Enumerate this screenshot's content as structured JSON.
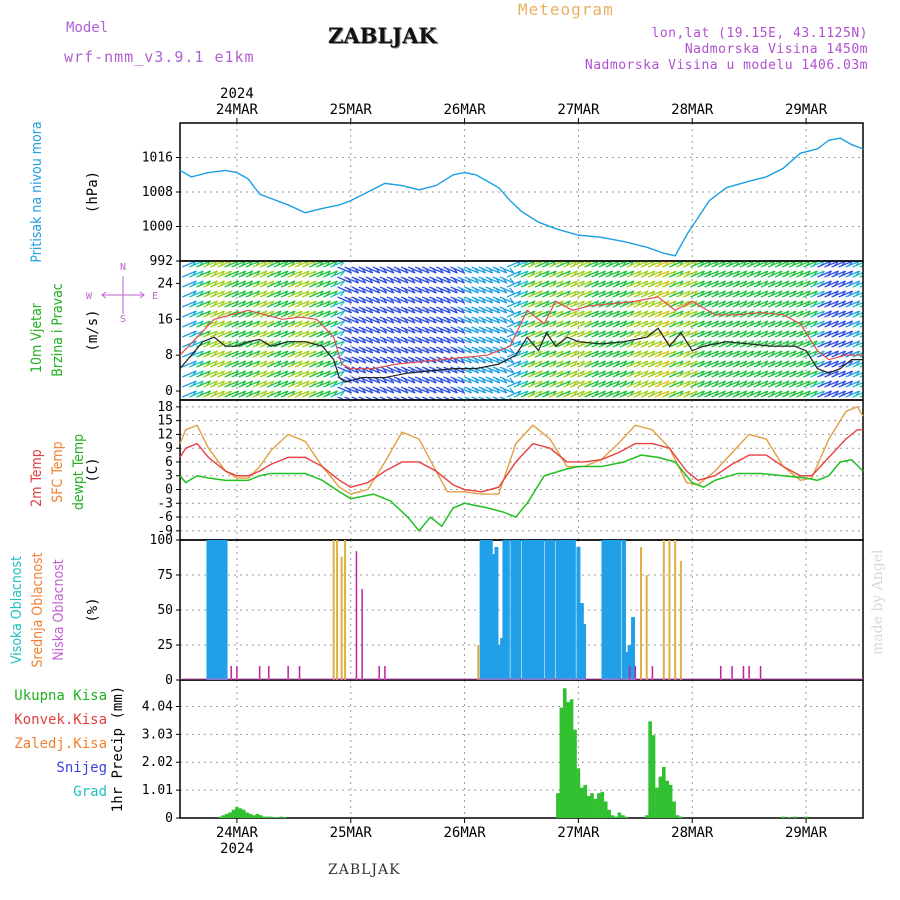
{
  "header": {
    "model_label": "Model",
    "model_name": "wrf-nmm_v3.9.1 e1km",
    "title": "ZABLJAK",
    "meteogram_label": "Meteogram",
    "location": "lon,lat (19.15E, 43.1125N)",
    "altitude": "Nadmorska Visina 1450m",
    "model_altitude": "Nadmorska Visina u modelu 1406.03m",
    "year": "2024",
    "credit": "made by Angel"
  },
  "footer": {
    "station": "ZABLJAK"
  },
  "colors": {
    "pressure": "#1aa0e6",
    "wind_speed": "#222222",
    "gust": "#e05050",
    "temp2m": "#e84040",
    "sfc_temp": "#e0a040",
    "dewpoint": "#20c020",
    "high_cloud": "#20a0e8",
    "mid_cloud": "#e0b040",
    "low_cloud": "#c020a0",
    "precip_total": "#30c030",
    "label_green": "#20b020",
    "label_red": "#e04040",
    "label_orange": "#f08030",
    "label_blue": "#4040e0",
    "label_cyan": "#20c0c0",
    "label_pressure": "#20a0e0",
    "label_purple": "#c060d0"
  },
  "chart_data": [
    {
      "type": "line",
      "panel": "pressure",
      "title_lines": [
        "Pritisak na nivou mora"
      ],
      "unit": "(hPa)",
      "x_dates": [
        "24MAR",
        "25MAR",
        "26MAR",
        "27MAR",
        "28MAR",
        "29MAR"
      ],
      "x_days": [
        0,
        1,
        2,
        3,
        4,
        5
      ],
      "xlim": [
        -0.5,
        5.5
      ],
      "ylim": [
        992,
        1024
      ],
      "yticks": [
        992,
        1000,
        1008,
        1016
      ],
      "ytick_labels": [
        "992",
        "1000",
        "1008",
        "1016"
      ],
      "series": [
        {
          "x": [
            -0.5,
            -0.4,
            -0.25,
            -0.1,
            0.0,
            0.1,
            0.2,
            0.3,
            0.45,
            0.6,
            0.75,
            0.9,
            1.0,
            1.15,
            1.3,
            1.45,
            1.6,
            1.75,
            1.9,
            2.0,
            2.1,
            2.2,
            2.3,
            2.4,
            2.5,
            2.65,
            2.8,
            3.0,
            3.2,
            3.4,
            3.6,
            3.75,
            3.85,
            3.95,
            4.05,
            4.15,
            4.3,
            4.5,
            4.65,
            4.8,
            4.95,
            5.1,
            5.2,
            5.3,
            5.4,
            5.5
          ],
          "y": [
            1013,
            1011.5,
            1012.5,
            1013,
            1012.5,
            1011,
            1007.5,
            1006.5,
            1005,
            1003.2,
            1004.2,
            1005,
            1006,
            1008,
            1010,
            1009.5,
            1008.5,
            1009.5,
            1012,
            1012.5,
            1012,
            1010.5,
            1009,
            1006,
            1003.5,
            1001,
            999.5,
            998,
            997.5,
            996.5,
            995.2,
            993.8,
            993.2,
            998,
            1002,
            1006,
            1009,
            1010.5,
            1011.5,
            1013.5,
            1017,
            1018,
            1020,
            1020.5,
            1019,
            1018
          ]
        }
      ]
    },
    {
      "type": "line",
      "panel": "wind",
      "title_lines": [
        "10m Vjetar",
        "Brzina i Pravac"
      ],
      "unit": "(m/s)",
      "compass_labels": {
        "north": "N",
        "south": "S",
        "east": "E",
        "west": "W"
      },
      "ylim": [
        -2,
        29
      ],
      "yticks": [
        0,
        8,
        16,
        24
      ],
      "ytick_labels": [
        "0",
        "8",
        "16",
        "24"
      ],
      "series": [
        {
          "name": "wind_speed",
          "x": [
            -0.5,
            -0.4,
            -0.3,
            -0.2,
            -0.1,
            0.0,
            0.1,
            0.2,
            0.3,
            0.45,
            0.6,
            0.75,
            0.85,
            0.9,
            0.95,
            1.1,
            1.3,
            1.5,
            1.7,
            1.9,
            2.1,
            2.3,
            2.45,
            2.55,
            2.65,
            2.72,
            2.8,
            2.9,
            3.0,
            3.2,
            3.4,
            3.6,
            3.7,
            3.8,
            3.9,
            4.0,
            4.1,
            4.3,
            4.5,
            4.7,
            4.9,
            5.0,
            5.1,
            5.2,
            5.3,
            5.4,
            5.5
          ],
          "y": [
            5,
            8,
            11,
            12,
            10,
            10,
            11,
            11.5,
            10,
            11,
            11,
            10,
            7,
            3,
            2,
            3,
            3,
            4,
            4.5,
            5,
            5,
            6,
            8,
            12,
            9,
            13,
            10,
            12,
            11,
            10.5,
            11,
            12,
            14,
            10,
            13,
            9,
            10,
            11,
            10.5,
            10,
            10,
            9,
            5,
            4,
            5,
            7,
            7
          ]
        },
        {
          "name": "gust",
          "x": [
            -0.5,
            -0.35,
            -0.2,
            -0.05,
            0.1,
            0.25,
            0.4,
            0.55,
            0.7,
            0.85,
            0.92,
            1.0,
            1.2,
            1.4,
            1.6,
            1.8,
            2.0,
            2.2,
            2.4,
            2.55,
            2.7,
            2.8,
            2.95,
            3.1,
            3.3,
            3.5,
            3.7,
            3.85,
            4.0,
            4.2,
            4.4,
            4.6,
            4.8,
            4.95,
            5.1,
            5.2,
            5.35,
            5.5
          ],
          "y": [
            8,
            12,
            16,
            17,
            18,
            17,
            16,
            16.5,
            16,
            12,
            6,
            5,
            5,
            6,
            6.5,
            7,
            7.5,
            8,
            10,
            18,
            15,
            20,
            18,
            19,
            19.5,
            20,
            21,
            18,
            20,
            17,
            17,
            17.5,
            17,
            15,
            9,
            7,
            8,
            8
          ]
        }
      ]
    },
    {
      "type": "line",
      "panel": "temperature",
      "title_lines": [
        "2m Temp",
        "SFC Temp",
        "dewpt Temp"
      ],
      "unit": "(C)",
      "ylim": [
        -11,
        19.5
      ],
      "yticks": [
        -9,
        -6,
        -3,
        0,
        3,
        6,
        9,
        12,
        15,
        18
      ],
      "ytick_labels": [
        "-9",
        "-6",
        "-3",
        "0",
        "3",
        "6",
        "9",
        "12",
        "15",
        "18"
      ],
      "series": [
        {
          "name": "2m Temp",
          "x": [
            -0.5,
            -0.45,
            -0.35,
            -0.25,
            -0.1,
            0.0,
            0.1,
            0.2,
            0.3,
            0.45,
            0.6,
            0.75,
            0.9,
            1.0,
            1.15,
            1.3,
            1.45,
            1.6,
            1.75,
            1.9,
            2.0,
            2.15,
            2.3,
            2.45,
            2.6,
            2.75,
            2.9,
            3.05,
            3.2,
            3.35,
            3.5,
            3.65,
            3.8,
            3.95,
            4.05,
            4.2,
            4.35,
            4.5,
            4.65,
            4.8,
            4.95,
            5.05,
            5.2,
            5.35,
            5.45,
            5.5
          ],
          "y": [
            7,
            9,
            10,
            7,
            4,
            3,
            3,
            4,
            5.5,
            7,
            7,
            5,
            2,
            0.5,
            1.5,
            4,
            6,
            6,
            4,
            1,
            0,
            -0.5,
            0.5,
            6,
            10,
            9,
            6,
            6,
            6.5,
            8,
            10,
            10,
            9,
            4,
            2,
            3,
            5.5,
            7.5,
            7.5,
            5,
            3,
            3,
            7,
            11,
            13,
            13
          ]
        },
        {
          "name": "SFC Temp",
          "x": [
            -0.5,
            -0.45,
            -0.35,
            -0.25,
            -0.1,
            0.0,
            0.1,
            0.2,
            0.3,
            0.45,
            0.6,
            0.75,
            0.9,
            1.0,
            1.15,
            1.3,
            1.45,
            1.6,
            1.75,
            1.85,
            2.0,
            2.15,
            2.3,
            2.45,
            2.6,
            2.75,
            2.9,
            3.05,
            3.2,
            3.35,
            3.5,
            3.65,
            3.8,
            3.95,
            4.05,
            4.2,
            4.35,
            4.5,
            4.65,
            4.8,
            4.95,
            5.05,
            5.2,
            5.35,
            5.45,
            5.5
          ],
          "y": [
            10,
            13,
            14,
            9,
            4,
            2.5,
            2.5,
            5,
            8.5,
            12,
            10.5,
            5,
            0.5,
            -1,
            0,
            6,
            12.5,
            11,
            4,
            -0.5,
            -0.5,
            -1,
            -1,
            10,
            14,
            11,
            5,
            5,
            6.5,
            10,
            14,
            13,
            9,
            1.5,
            1,
            4,
            8,
            12,
            11,
            5,
            2,
            2.5,
            11,
            17,
            18,
            16
          ]
        },
        {
          "name": "dewpt Temp",
          "x": [
            -0.5,
            -0.45,
            -0.35,
            -0.25,
            -0.1,
            0.0,
            0.1,
            0.2,
            0.3,
            0.45,
            0.6,
            0.75,
            0.9,
            1.0,
            1.2,
            1.35,
            1.5,
            1.6,
            1.7,
            1.8,
            1.9,
            2.0,
            2.2,
            2.35,
            2.45,
            2.55,
            2.7,
            2.9,
            3.0,
            3.2,
            3.4,
            3.55,
            3.7,
            3.85,
            4.0,
            4.1,
            4.2,
            4.4,
            4.6,
            4.8,
            5.0,
            5.1,
            5.2,
            5.3,
            5.4,
            5.5
          ],
          "y": [
            3,
            1.5,
            3,
            2.5,
            2,
            2,
            2,
            3,
            3.5,
            3.5,
            3.5,
            2,
            -0.5,
            -2,
            -1,
            -2.5,
            -6,
            -9,
            -6,
            -8,
            -4,
            -3,
            -4,
            -5,
            -6,
            -3,
            3,
            4.5,
            5,
            5,
            6,
            7.5,
            7,
            6,
            1.5,
            0.5,
            2,
            3.5,
            3.5,
            3,
            2.5,
            2,
            3,
            6,
            6.5,
            4
          ]
        }
      ]
    },
    {
      "type": "bar",
      "panel": "clouds",
      "title_lines": [
        "Visoka Oblacnost",
        "Srednja Oblacnost",
        "Niska Oblacnost"
      ],
      "unit": "(%)",
      "ylim": [
        0,
        100
      ],
      "yticks": [
        0,
        25,
        50,
        75,
        100
      ],
      "ytick_labels": [
        "0",
        "25",
        "50",
        "75",
        "100"
      ],
      "series": [
        {
          "name": "Visoka Oblacnost",
          "x": [
            -0.25,
            -0.22,
            -0.2,
            -0.18,
            -0.16,
            -0.14,
            -0.12,
            -0.1,
            2.15,
            2.18,
            2.2,
            2.23,
            2.25,
            2.28,
            2.3,
            2.33,
            2.35,
            2.38,
            2.42,
            2.45,
            2.48,
            2.52,
            2.55,
            2.58,
            2.6,
            2.63,
            2.65,
            2.68,
            2.72,
            2.75,
            2.78,
            2.82,
            2.85,
            2.88,
            2.9,
            2.93,
            2.96,
            3.0,
            3.03,
            3.05,
            3.22,
            3.25,
            3.28,
            3.3,
            3.33,
            3.36,
            3.4,
            3.43,
            3.45,
            3.48
          ],
          "y": [
            100,
            100,
            100,
            100,
            100,
            100,
            100,
            100,
            100,
            100,
            100,
            100,
            90,
            95,
            25,
            30,
            100,
            100,
            100,
            100,
            100,
            100,
            100,
            100,
            100,
            100,
            100,
            100,
            100,
            100,
            100,
            100,
            100,
            100,
            100,
            100,
            100,
            95,
            55,
            40,
            100,
            100,
            100,
            100,
            100,
            100,
            100,
            20,
            25,
            45
          ]
        },
        {
          "name": "Srednja Oblacnost",
          "x": [
            -0.24,
            -0.15,
            -0.11,
            0.85,
            0.88,
            0.92,
            0.95,
            2.12,
            2.15,
            2.2,
            2.55,
            2.6,
            2.9,
            2.95,
            3.55,
            3.6,
            3.75,
            3.8,
            3.85,
            3.9
          ],
          "y": [
            100,
            100,
            100,
            100,
            100,
            88,
            100,
            25,
            100,
            100,
            100,
            100,
            100,
            100,
            95,
            75,
            100,
            100,
            100,
            85
          ]
        },
        {
          "name": "Niska Oblacnost",
          "x": [
            -0.05,
            0.0,
            0.2,
            0.28,
            0.45,
            0.55,
            1.05,
            1.1,
            1.25,
            1.3,
            3.45,
            3.5,
            3.65,
            4.25,
            4.35,
            4.45,
            4.5,
            4.6
          ],
          "y": [
            10,
            10,
            10,
            10,
            10,
            10,
            92,
            65,
            10,
            10,
            10,
            10,
            10,
            10,
            10,
            10,
            10,
            10
          ]
        }
      ]
    },
    {
      "type": "bar",
      "panel": "precipitation",
      "title_lines": [
        "Ukupna Kisa",
        "Konvek.Kisa",
        "Zaledj.Kisa",
        "Snijeg",
        "Grad"
      ],
      "unit": "1hr Precip (mm)",
      "ylim": [
        0,
        5
      ],
      "yticks": [
        0,
        1.01,
        2.02,
        3.03,
        4.04
      ],
      "ytick_labels": [
        "0",
        "1.01",
        "2.02",
        "3.03",
        "4.04"
      ],
      "series": [
        {
          "name": "Ukupna Kisa",
          "x": [
            -0.15,
            -0.12,
            -0.09,
            -0.06,
            -0.03,
            0.0,
            0.03,
            0.06,
            0.09,
            0.12,
            0.15,
            0.18,
            0.21,
            0.24,
            0.27,
            0.3,
            0.33,
            0.36,
            0.39,
            0.42,
            2.82,
            2.85,
            2.88,
            2.91,
            2.94,
            2.97,
            3.0,
            3.03,
            3.06,
            3.09,
            3.12,
            3.15,
            3.18,
            3.21,
            3.24,
            3.27,
            3.3,
            3.33,
            3.36,
            3.39,
            3.42,
            3.6,
            3.63,
            3.66,
            3.69,
            3.72,
            3.75,
            3.78,
            3.81,
            3.84,
            3.87,
            3.9,
            4.8,
            4.85,
            4.9,
            5.0
          ],
          "y": [
            0.05,
            0.1,
            0.15,
            0.2,
            0.3,
            0.4,
            0.35,
            0.3,
            0.2,
            0.15,
            0.1,
            0.15,
            0.1,
            0.05,
            0.05,
            0.05,
            0.03,
            0.02,
            0.05,
            0.03,
            0.9,
            4.0,
            4.7,
            4.2,
            4.3,
            3.2,
            1.8,
            1.1,
            1.2,
            0.8,
            0.9,
            0.7,
            0.9,
            0.95,
            0.6,
            0.3,
            0.1,
            0.05,
            0.2,
            0.1,
            0.05,
            0.1,
            3.5,
            3.0,
            1.1,
            1.5,
            1.85,
            1.35,
            1.2,
            0.6,
            0.1,
            0.05,
            0.05,
            0.03,
            0.05,
            0.05
          ]
        }
      ]
    }
  ]
}
